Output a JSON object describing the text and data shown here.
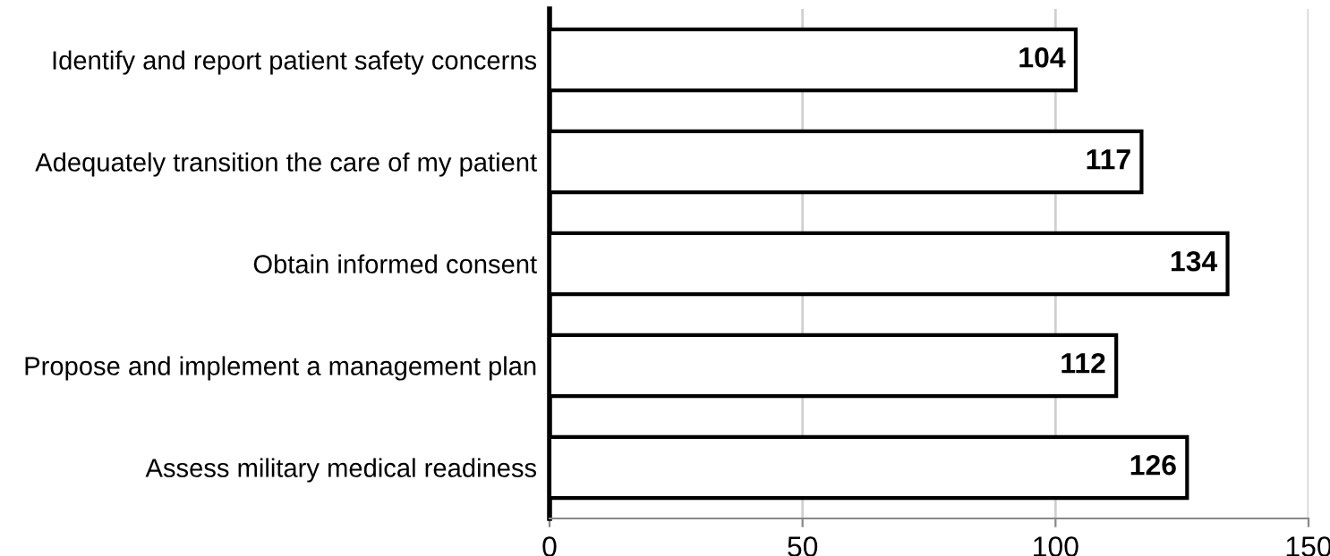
{
  "chart_data": {
    "type": "bar",
    "orientation": "horizontal",
    "categories": [
      "Identify and report patient safety concerns",
      "Adequately transition the care of my patient",
      "Obtain informed consent",
      "Propose and implement a management plan",
      "Assess military medical readiness"
    ],
    "values": [
      104,
      117,
      134,
      112,
      126
    ],
    "color": "#ffffff",
    "xlim": [
      0,
      150
    ],
    "xticks": [
      0,
      50,
      100,
      150
    ],
    "grid": "x",
    "data_labels": true,
    "legend": false
  }
}
